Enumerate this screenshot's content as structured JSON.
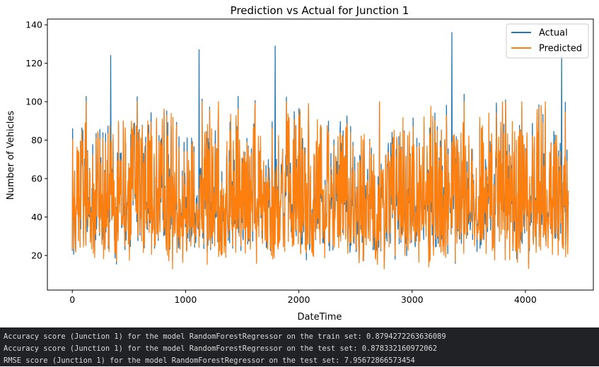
{
  "chart_data": {
    "type": "line",
    "title": "Prediction vs Actual for Junction 1",
    "xlabel": "DateTime",
    "ylabel": "Number of Vehicles",
    "xlim": [
      -220,
      4600
    ],
    "ylim": [
      2,
      143
    ],
    "xticks": [
      0,
      1000,
      2000,
      3000,
      4000
    ],
    "yticks": [
      20,
      40,
      60,
      80,
      100,
      120,
      140
    ],
    "x_range": [
      0,
      4380
    ],
    "grid": false,
    "legend_position": "top-right",
    "series": [
      {
        "name": "Actual",
        "color": "#1f77b4",
        "value_range": [
          7,
          136
        ],
        "typical_range": [
          15,
          100
        ],
        "notable_peaks": [
          {
            "x": 340,
            "y": 124
          },
          {
            "x": 1120,
            "y": 127
          },
          {
            "x": 1790,
            "y": 129
          },
          {
            "x": 3350,
            "y": 136
          },
          {
            "x": 4320,
            "y": 124
          }
        ]
      },
      {
        "name": "Predicted",
        "color": "#ff7f0e",
        "value_range": [
          13,
          100
        ],
        "typical_range": [
          20,
          100
        ]
      }
    ]
  },
  "console": {
    "lines": [
      "Accuracy score (Junction 1) for the model RandomForestRegressor on the train set: 0.8794272263636089",
      "Accuracy score (Junction 1) for the model RandomForestRegressor on the test set: 0.878332160972062",
      "RMSE score (Junction 1) for the model RandomForestRegressor on the test set: 7.95672866573454"
    ]
  }
}
